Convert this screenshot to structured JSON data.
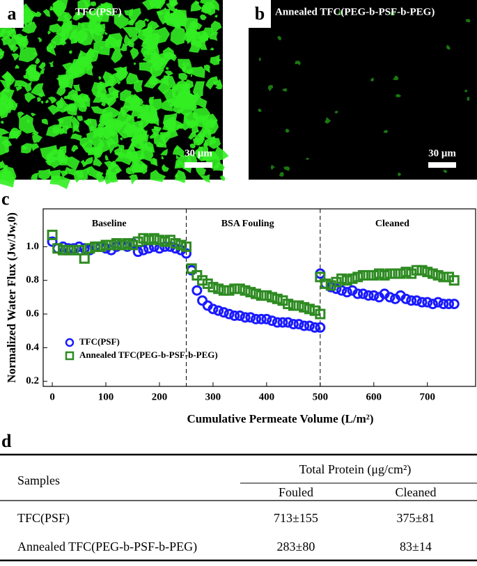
{
  "panels": [
    {
      "label": "a",
      "title": "TFC(PSF)",
      "scale_bar": "30 μm"
    },
    {
      "label": "b",
      "title": "Annealed TFC(PEG-b-PSF-b-PEG)",
      "scale_bar": "30 μm"
    }
  ],
  "chart_label": "c",
  "chart_data": {
    "type": "scatter",
    "xlabel": "Cumulative Permeate Volume (L/m²)",
    "ylabel": "Normalized Water Flux (Jw/Jw,0)",
    "annotations": [
      "Baseline",
      "BSA Fouling",
      "Cleaned"
    ],
    "dividers": [
      250,
      500
    ],
    "x": [
      0,
      10,
      20,
      30,
      40,
      50,
      60,
      70,
      80,
      90,
      100,
      110,
      120,
      130,
      140,
      150,
      160,
      170,
      180,
      190,
      200,
      210,
      220,
      230,
      240,
      250,
      260,
      270,
      280,
      290,
      300,
      310,
      320,
      330,
      340,
      350,
      360,
      370,
      380,
      390,
      400,
      410,
      420,
      430,
      440,
      450,
      460,
      470,
      480,
      490,
      500,
      500,
      510,
      520,
      530,
      540,
      550,
      560,
      570,
      580,
      590,
      600,
      610,
      620,
      630,
      640,
      650,
      660,
      670,
      680,
      690,
      700,
      710,
      720,
      730,
      740,
      750
    ],
    "series": [
      {
        "name": "TFC(PSF)",
        "color": "#1a1aff",
        "marker": "circle",
        "values": [
          1.03,
          0.99,
          1.0,
          0.99,
          0.99,
          1.0,
          0.99,
          0.98,
          1.0,
          1.0,
          0.99,
          0.98,
          1.0,
          1.01,
          1.0,
          1.02,
          0.97,
          0.98,
          0.99,
          1.0,
          0.99,
          1.0,
          1.0,
          0.99,
          0.98,
          0.96,
          0.86,
          0.74,
          0.68,
          0.65,
          0.63,
          0.62,
          0.61,
          0.6,
          0.59,
          0.59,
          0.58,
          0.58,
          0.57,
          0.57,
          0.57,
          0.56,
          0.55,
          0.55,
          0.55,
          0.54,
          0.54,
          0.53,
          0.53,
          0.52,
          0.52,
          0.84,
          0.78,
          0.76,
          0.75,
          0.74,
          0.73,
          0.74,
          0.72,
          0.72,
          0.71,
          0.71,
          0.7,
          0.72,
          0.7,
          0.69,
          0.71,
          0.69,
          0.68,
          0.68,
          0.67,
          0.67,
          0.66,
          0.67,
          0.66,
          0.66,
          0.66
        ]
      },
      {
        "name": "Annealed TFC(PEG-b-PSF-b-PEG)",
        "color": "#2e8b22",
        "marker": "square",
        "values": [
          1.07,
          0.99,
          0.98,
          0.98,
          0.98,
          0.98,
          0.93,
          0.99,
          1.0,
          1.0,
          1.01,
          1.01,
          1.02,
          1.01,
          1.02,
          1.01,
          1.03,
          1.05,
          1.04,
          1.05,
          1.04,
          1.03,
          1.04,
          1.02,
          1.01,
          1.0,
          0.87,
          0.83,
          0.8,
          0.78,
          0.76,
          0.75,
          0.74,
          0.74,
          0.75,
          0.75,
          0.74,
          0.73,
          0.72,
          0.71,
          0.71,
          0.7,
          0.69,
          0.68,
          0.66,
          0.65,
          0.65,
          0.64,
          0.63,
          0.62,
          0.6,
          0.82,
          0.78,
          0.77,
          0.79,
          0.81,
          0.8,
          0.81,
          0.82,
          0.83,
          0.83,
          0.83,
          0.84,
          0.83,
          0.84,
          0.84,
          0.84,
          0.85,
          0.84,
          0.86,
          0.86,
          0.85,
          0.84,
          0.83,
          0.82,
          0.82,
          0.8
        ]
      }
    ],
    "xlim": [
      -17,
      790
    ],
    "ylim": [
      0.17,
      1.225
    ],
    "xticks": [
      0,
      100,
      200,
      300,
      400,
      500,
      600,
      700
    ],
    "yticks": [
      0.2,
      0.4,
      0.6,
      0.8,
      {
        "value": 1,
        "label": "1.0"
      }
    ],
    "legend": "lower left"
  },
  "table_label": "d",
  "table": {
    "header": [
      "Samples",
      "Total Protein (μg/cm²)"
    ],
    "subheader": [
      "Fouled",
      "Cleaned"
    ],
    "rows": [
      [
        "TFC(PSF)",
        "713±155",
        "375±81"
      ],
      [
        "Annealed TFC(PEG-b-PSF-b-PEG)",
        "283±80",
        "83±14"
      ]
    ]
  }
}
